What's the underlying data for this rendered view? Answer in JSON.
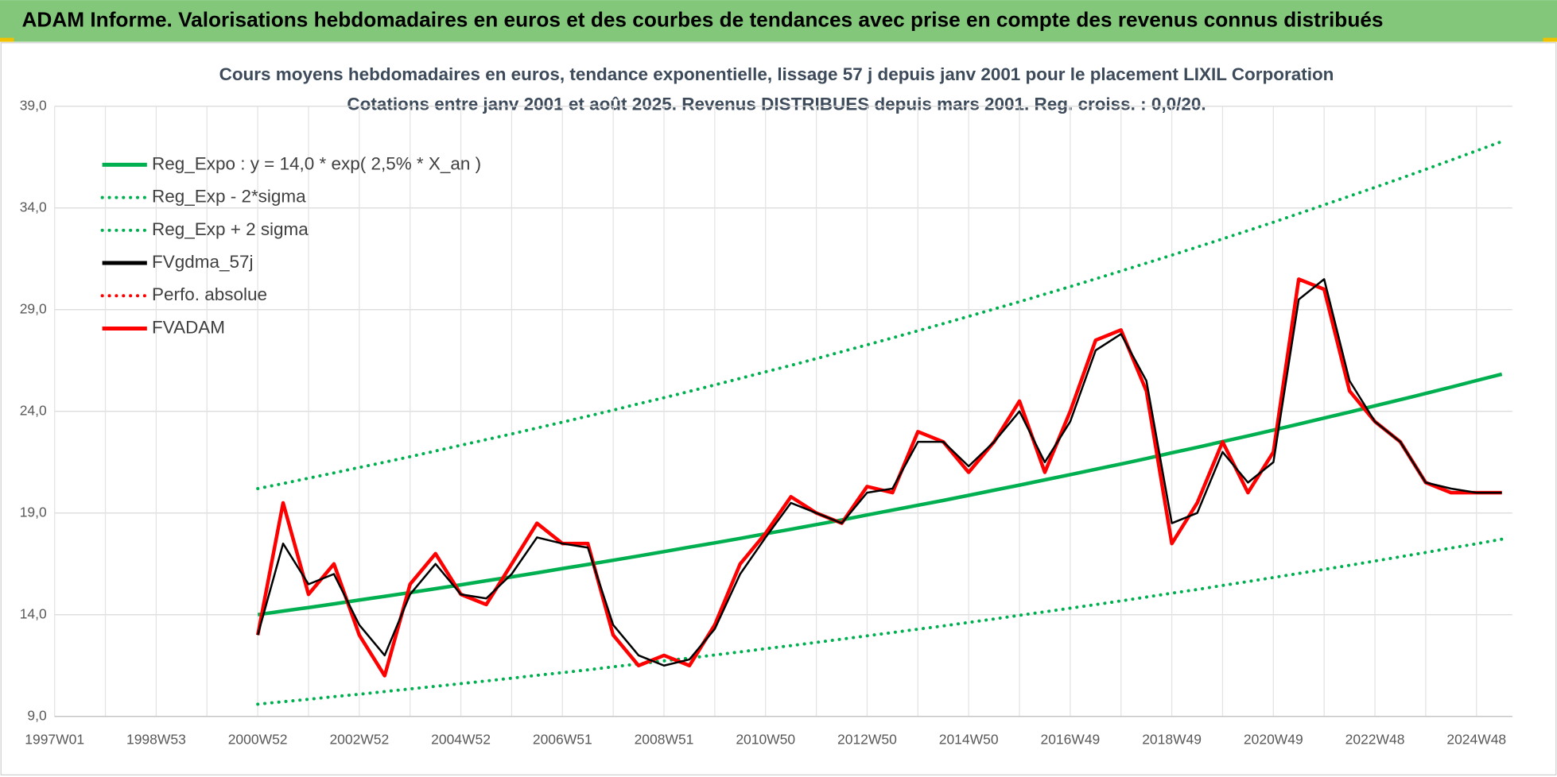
{
  "header": "ADAM Informe. Valorisations hebdomadaires en euros et des courbes de tendances avec prise en compte des revenus connus distribués",
  "chart_data": {
    "type": "line",
    "title": "Cours moyens hebdomadaires en euros, tendance exponentielle, lissage 57 j depuis janv 2001 pour le placement LIXIL Corporation",
    "subtitle": "Cotations entre janv 2001 et août 2025. Revenus DISTRIBUES depuis mars 2001. Reg. croiss. : 0,0/20.",
    "categories": [
      "1997W01",
      null,
      null,
      null,
      "1998W53",
      null,
      null,
      null,
      "2000W52",
      null,
      null,
      null,
      "2002W52",
      null,
      null,
      null,
      "2004W52",
      null,
      null,
      null,
      "2006W51",
      null,
      null,
      null,
      "2008W51",
      null,
      null,
      null,
      "2010W50",
      null,
      null,
      null,
      "2012W50",
      null,
      null,
      null,
      "2014W50",
      null,
      null,
      null,
      "2016W49",
      null,
      null,
      null,
      "2018W49",
      null,
      null,
      null,
      "2020W49",
      null,
      null,
      null,
      "2022W48",
      null,
      null,
      null,
      "2024W48",
      null
    ],
    "ylim": [
      9,
      39
    ],
    "yticks": [
      {
        "value": 9,
        "label": "9,0"
      },
      {
        "value": 14,
        "label": "14,0"
      },
      {
        "value": 19,
        "label": "19,0"
      },
      {
        "value": 24,
        "label": "24,0"
      },
      {
        "value": 29,
        "label": "29,0"
      },
      {
        "value": 34,
        "label": "34,0"
      },
      {
        "value": 39,
        "label": "39,0"
      }
    ],
    "grid": true,
    "legend": "upper-left",
    "series": [
      {
        "name": "Reg_Expo : y = 14,0 * exp( 2,5% *  X_an )",
        "color": "#00b050",
        "style": "solid",
        "values": [
          null,
          null,
          null,
          null,
          null,
          null,
          null,
          null,
          14.0,
          14.18,
          14.35,
          14.53,
          14.72,
          14.9,
          15.09,
          15.28,
          15.47,
          15.67,
          15.86,
          16.06,
          16.27,
          16.47,
          16.68,
          16.89,
          17.1,
          17.32,
          17.53,
          17.75,
          17.98,
          18.2,
          18.43,
          18.66,
          18.9,
          19.14,
          19.38,
          19.62,
          19.87,
          20.12,
          20.37,
          20.63,
          20.89,
          21.15,
          21.41,
          21.68,
          21.96,
          22.23,
          22.51,
          22.79,
          23.08,
          23.37,
          23.67,
          23.96,
          24.27,
          24.57,
          24.88,
          25.19,
          25.51,
          25.83
        ]
      },
      {
        "name": "Reg_Exp - 2*sigma",
        "color": "#00b050",
        "style": "dotted",
        "values": [
          null,
          null,
          null,
          null,
          null,
          null,
          null,
          null,
          9.6,
          9.72,
          9.84,
          9.97,
          10.09,
          10.22,
          10.35,
          10.48,
          10.61,
          10.74,
          10.88,
          11.02,
          11.15,
          11.29,
          11.44,
          11.58,
          11.73,
          11.87,
          12.02,
          12.17,
          12.33,
          12.48,
          12.64,
          12.8,
          12.96,
          13.12,
          13.29,
          13.45,
          13.62,
          13.79,
          13.97,
          14.14,
          14.32,
          14.5,
          14.68,
          14.87,
          15.06,
          15.24,
          15.44,
          15.63,
          15.83,
          16.03,
          16.23,
          16.43,
          16.64,
          16.85,
          17.06,
          17.28,
          17.49,
          17.71
        ]
      },
      {
        "name": "Reg_Exp + 2 sigma",
        "color": "#00b050",
        "style": "dotted",
        "values": [
          null,
          null,
          null,
          null,
          null,
          null,
          null,
          null,
          20.2,
          20.45,
          20.71,
          20.97,
          21.24,
          21.5,
          21.77,
          22.05,
          22.33,
          22.61,
          22.89,
          23.18,
          23.47,
          23.76,
          24.06,
          24.37,
          24.67,
          24.98,
          25.3,
          25.62,
          25.94,
          26.26,
          26.59,
          26.93,
          27.27,
          27.61,
          27.96,
          28.31,
          28.67,
          29.03,
          29.39,
          29.76,
          30.13,
          30.51,
          30.9,
          31.29,
          31.68,
          32.08,
          32.48,
          32.89,
          33.3,
          33.72,
          34.15,
          34.58,
          35.01,
          35.45,
          35.9,
          36.35,
          36.81,
          37.27
        ]
      },
      {
        "name": "FVgdma_57j",
        "color": "#000000",
        "style": "solid",
        "values": [
          null,
          null,
          null,
          null,
          null,
          null,
          null,
          null,
          13,
          17.5,
          15.5,
          16,
          13.5,
          12,
          15,
          16.5,
          15,
          14.8,
          16,
          17.8,
          17.5,
          17.3,
          13.5,
          12,
          11.5,
          11.8,
          13.3,
          16,
          17.8,
          19.5,
          19,
          18.5,
          20,
          20.2,
          22.5,
          22.5,
          21.3,
          22.5,
          24,
          21.5,
          23.5,
          27,
          27.8,
          25.5,
          18.5,
          19,
          22,
          20.5,
          21.5,
          29.5,
          30.5,
          25.5,
          23.5,
          22.5,
          20.5,
          20.2,
          20,
          20
        ]
      },
      {
        "name": "Perfo. absolue",
        "color": "#ff0000",
        "style": "dotted",
        "values": [
          null,
          null,
          null,
          null,
          null,
          null,
          null,
          null,
          null,
          null,
          null,
          null,
          null,
          null,
          null,
          null,
          null,
          null,
          null,
          null,
          null,
          null,
          null,
          null,
          null,
          null,
          null,
          null,
          null,
          null,
          null,
          null,
          null,
          null,
          null,
          null,
          null,
          null,
          null,
          null,
          null,
          null,
          null,
          null,
          null,
          null,
          null,
          null,
          null,
          null,
          null,
          null,
          null,
          null,
          null,
          null,
          null,
          null
        ]
      },
      {
        "name": "FVADAM",
        "color": "#ff0000",
        "style": "solid",
        "values": [
          null,
          null,
          null,
          null,
          null,
          null,
          null,
          null,
          13,
          19.5,
          15,
          16.5,
          13,
          11,
          15.5,
          17,
          15,
          14.5,
          16.5,
          18.5,
          17.5,
          17.5,
          13,
          11.5,
          12,
          11.5,
          13.5,
          16.5,
          18,
          19.8,
          19,
          18.5,
          20.3,
          20,
          23,
          22.5,
          21,
          22.5,
          24.5,
          21,
          24,
          27.5,
          28,
          25,
          17.5,
          19.5,
          22.5,
          20,
          22,
          30.5,
          30,
          25,
          23.5,
          22.5,
          20.5,
          20,
          20,
          20
        ]
      }
    ]
  }
}
